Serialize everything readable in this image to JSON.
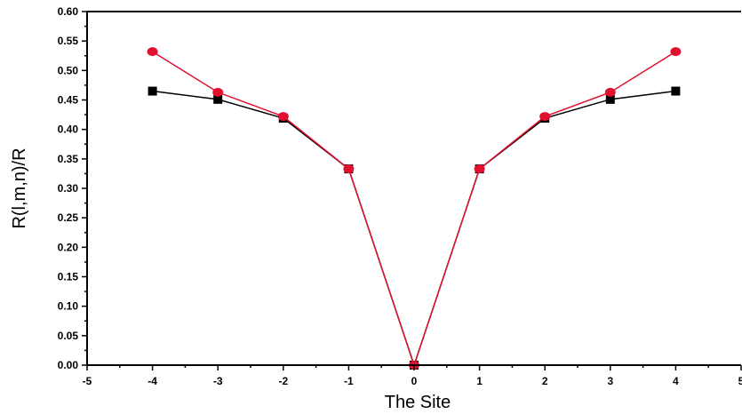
{
  "chart_data": {
    "type": "line",
    "title": "",
    "xlabel": "The Site",
    "ylabel": "R(l,m,n)/R",
    "xlim": [
      -5,
      5
    ],
    "ylim": [
      0.0,
      0.6
    ],
    "x_ticks": [
      "-5",
      "-4",
      "-3",
      "-2",
      "-1",
      "0",
      "1",
      "2",
      "3",
      "4",
      "5"
    ],
    "y_ticks": [
      "0.00",
      "0.05",
      "0.10",
      "0.15",
      "0.20",
      "0.25",
      "0.30",
      "0.35",
      "0.40",
      "0.45",
      "0.50",
      "0.55",
      "0.60"
    ],
    "grid": false,
    "legend": "none",
    "series": [
      {
        "marker": "square",
        "color": "#000000",
        "x": [
          -4,
          -3,
          -2,
          -1,
          0,
          1,
          2,
          3,
          4
        ],
        "y": [
          0.465,
          0.451,
          0.419,
          0.333,
          0.0,
          0.333,
          0.419,
          0.451,
          0.465
        ]
      },
      {
        "marker": "circle",
        "color": "#e0102f",
        "x": [
          -4,
          -3,
          -2,
          -1,
          0,
          1,
          2,
          3,
          4
        ],
        "y": [
          0.532,
          0.463,
          0.422,
          0.333,
          0.0,
          0.333,
          0.422,
          0.463,
          0.532
        ]
      }
    ]
  }
}
